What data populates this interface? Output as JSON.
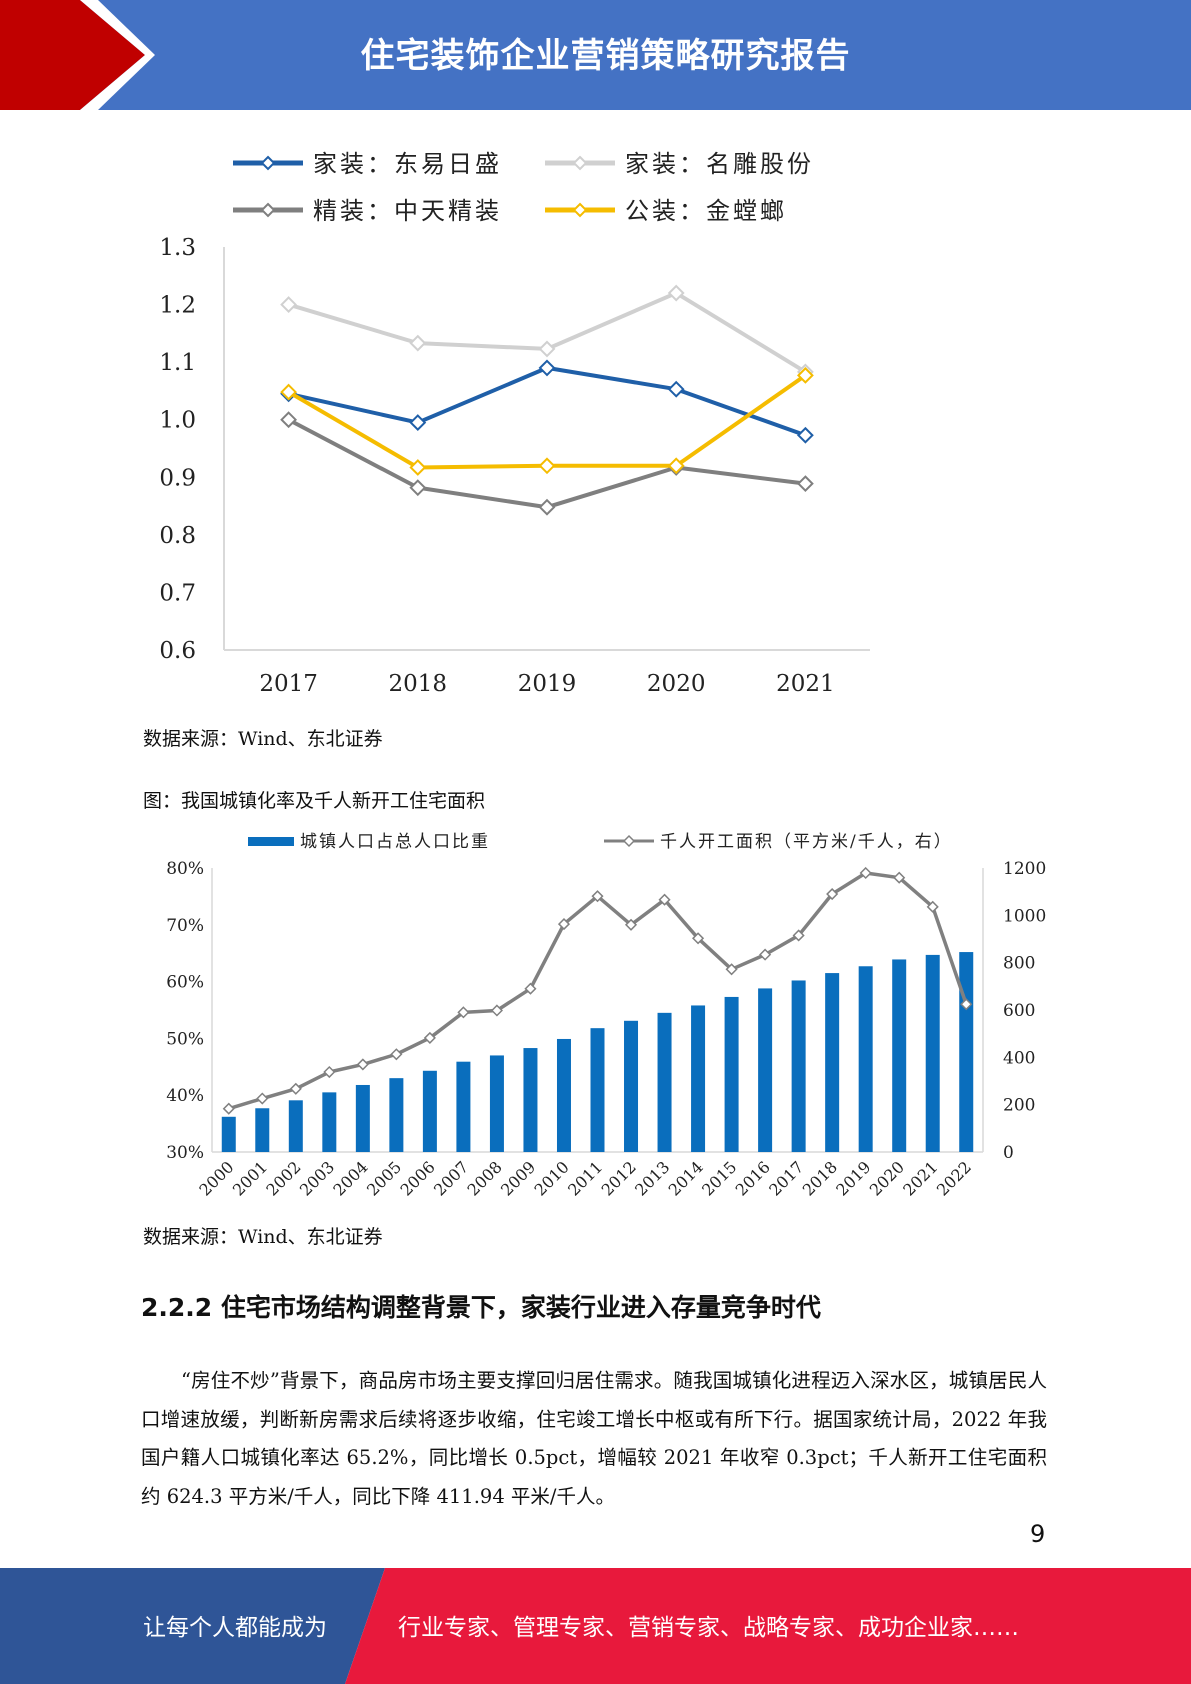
{
  "header": {
    "title": "住宅装饰企业营销策略研究报告",
    "colors": {
      "band": "#4472c4",
      "arrow": "#c00000"
    }
  },
  "chart1": {
    "source": "数据来源：Wind、东北证券"
  },
  "chart2": {
    "caption": "图：我国城镇化率及千人新开工住宅面积",
    "source": "数据来源：Wind、东北证券"
  },
  "chart_data": [
    {
      "type": "line",
      "title": "",
      "xlabel": "",
      "ylabel": "",
      "x": [
        "2017",
        "2018",
        "2019",
        "2020",
        "2021"
      ],
      "y_ticks": [
        "1.3",
        "1.2",
        "1.1",
        "1.0",
        "0.9",
        "0.8",
        "0.7",
        "0.6"
      ],
      "ylim": [
        0.6,
        1.3
      ],
      "grid": false,
      "legend_position": "top",
      "series": [
        {
          "name": "家装：东易日盛",
          "color": "#1f5fa8",
          "values": [
            1.045,
            0.995,
            1.09,
            1.053,
            0.973
          ]
        },
        {
          "name": "家装：名雕股份",
          "color": "#d0d0d0",
          "values": [
            1.2,
            1.133,
            1.123,
            1.22,
            1.083
          ]
        },
        {
          "name": "精装：中天精装",
          "color": "#7f7f7f",
          "values": [
            1.0,
            0.882,
            0.848,
            0.917,
            0.889
          ]
        },
        {
          "name": "公装：金螳螂",
          "color": "#f5bc00",
          "values": [
            1.048,
            0.917,
            0.92,
            0.92,
            1.077
          ]
        }
      ]
    },
    {
      "type": "bar",
      "title": "",
      "x": [
        "2000",
        "2001",
        "2002",
        "2003",
        "2004",
        "2005",
        "2006",
        "2007",
        "2008",
        "2009",
        "2010",
        "2011",
        "2012",
        "2013",
        "2014",
        "2015",
        "2016",
        "2017",
        "2018",
        "2019",
        "2020",
        "2021",
        "2022"
      ],
      "y_left_ticks": [
        "80%",
        "70%",
        "60%",
        "50%",
        "40%",
        "30%"
      ],
      "y_right_ticks": [
        "1200",
        "1000",
        "800",
        "600",
        "400",
        "200",
        "0"
      ],
      "ylim_left": [
        30,
        80
      ],
      "ylim_right": [
        0,
        1200
      ],
      "legend_position": "top",
      "series": [
        {
          "name": "城镇人口占总人口比重",
          "kind": "bar",
          "axis": "left",
          "color": "#0a6ebd",
          "values": [
            36.2,
            37.7,
            39.1,
            40.5,
            41.8,
            43.0,
            44.3,
            45.9,
            47.0,
            48.3,
            49.9,
            51.8,
            53.1,
            54.5,
            55.8,
            57.3,
            58.8,
            60.2,
            61.5,
            62.7,
            63.9,
            64.7,
            65.2
          ]
        },
        {
          "name": "千人开工面积（平方米/千人，右）",
          "kind": "line",
          "axis": "right",
          "color": "#808080",
          "values": [
            183,
            226,
            267,
            338,
            370,
            413,
            482,
            590,
            598,
            690,
            963,
            1081,
            960,
            1066,
            903,
            772,
            834,
            915,
            1090,
            1179,
            1159,
            1036,
            624.3
          ]
        }
      ]
    }
  ],
  "section": {
    "title": "2.2.2 住宅市场结构调整背景下，家装行业进入存量竞争时代",
    "paragraph": "“房住不炒”背景下，商品房市场主要支撑回归居住需求。随我国城镇化进程迈入深水区，城镇居民人口增速放缓，判断新房需求后续将逐步收缩，住宅竣工增长中枢或有所下行。据国家统计局，2022 年我国户籍人口城镇化率达 65.2%，同比增长 0.5pct，增幅较 2021 年收窄 0.3pct；千人新开工住宅面积约 624.3 平方米/千人，同比下降 411.94 平米/千人。"
  },
  "page_number": "9",
  "footer": {
    "left_text": "让每个人都能成为",
    "right_text": "行业专家、管理专家、营销专家、战略专家、成功企业家……",
    "colors": {
      "left": "#2f5597",
      "right": "#e8193c"
    }
  }
}
